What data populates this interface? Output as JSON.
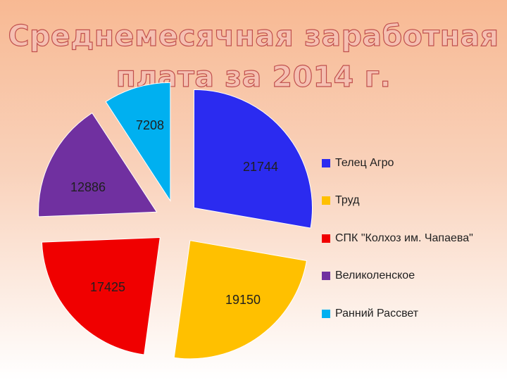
{
  "title": "Среднемесячная заработная плата за 2014 г.",
  "chart_data": {
    "type": "pie",
    "title": "Среднемесячная заработная плата за 2014 г.",
    "exploded": true,
    "start_angle": "12 o'clock, clockwise",
    "legend_position": "right",
    "slices": [
      {
        "label": "Телец Агро",
        "value": 21744,
        "color": "#2b2bf0"
      },
      {
        "label": "Труд",
        "value": 19150,
        "color": "#ffc000"
      },
      {
        "label": "СПК \"Колхоз им. Чапаева\"",
        "value": 17425,
        "color": "#f00000"
      },
      {
        "label": "Великоленское",
        "value": 12886,
        "color": "#7030a0"
      },
      {
        "label": "Ранний Рассвет",
        "value": 7208,
        "color": "#00b0f0"
      }
    ]
  }
}
